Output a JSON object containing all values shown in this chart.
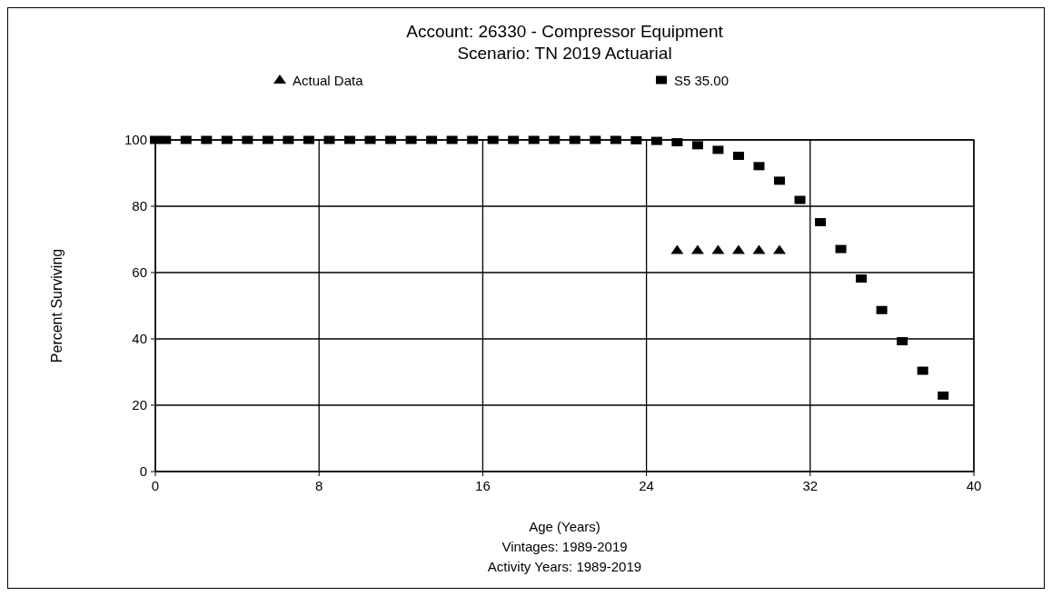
{
  "chart_data": {
    "type": "scatter",
    "title": "Account: 26330 - Compressor Equipment",
    "subtitle": "Scenario: TN 2019 Actuarial",
    "xlabel": "Age (Years)",
    "ylabel": "Percent Surviving",
    "annotations": [
      "Vintages: 1989-2019",
      "Activity Years: 1989-2019"
    ],
    "xlim": [
      0,
      40
    ],
    "xticks": [
      0,
      8,
      16,
      24,
      32,
      40
    ],
    "ylim": [
      0,
      100
    ],
    "yticks": [
      0,
      20,
      40,
      60,
      80,
      100
    ],
    "grid": true,
    "legend": "top",
    "series": [
      {
        "name": "Actual Data",
        "color": "#000000",
        "marker": "triangle",
        "x": [
          25.5,
          26.5,
          27.5,
          28.5,
          29.5,
          30.5
        ],
        "values": [
          66.7,
          66.7,
          66.7,
          66.7,
          66.7,
          66.7
        ]
      },
      {
        "name": "S5 35.00",
        "color": "#000000",
        "marker": "square",
        "x": [
          0,
          0.5,
          1.5,
          2.5,
          3.5,
          4.5,
          5.5,
          6.5,
          7.5,
          8.5,
          9.5,
          10.5,
          11.5,
          12.5,
          13.5,
          14.5,
          15.5,
          16.5,
          17.5,
          18.5,
          19.5,
          20.5,
          21.5,
          22.5,
          23.5,
          24.5,
          25.5,
          26.5,
          27.5,
          28.5,
          29.5,
          30.5,
          31.5,
          32.5,
          33.5,
          34.5,
          35.5,
          36.5,
          37.5,
          38.5
        ],
        "values": [
          100,
          100,
          100,
          100,
          100,
          100,
          100,
          100,
          100,
          100,
          100,
          100,
          100,
          100,
          100,
          100,
          100,
          100,
          100,
          100,
          100,
          100,
          100,
          100,
          99.9,
          99.7,
          99.3,
          98.4,
          97,
          95.2,
          92.1,
          87.7,
          81.9,
          75.2,
          67.1,
          58.2,
          48.7,
          39.3,
          30.4,
          22.9
        ]
      }
    ]
  }
}
